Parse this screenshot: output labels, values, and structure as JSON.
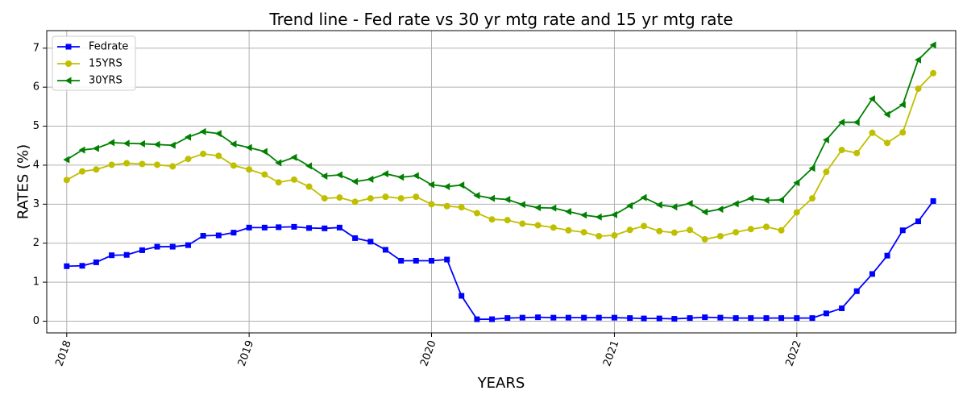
{
  "chart_data": {
    "type": "line",
    "title": "Trend line - Fed rate vs 30 yr mtg rate and 15 yr mtg rate",
    "xlabel": "YEARS",
    "ylabel": "RATES (%)",
    "xlim": [
      "2017-11-22",
      "2022-11-15"
    ],
    "ylim": [
      -0.3,
      7.45
    ],
    "x_ticks": [
      "2018-01-01",
      "2019-01-01",
      "2020-01-01",
      "2021-01-01",
      "2022-01-01"
    ],
    "x_tick_labels": [
      "2018",
      "2019",
      "2020",
      "2021",
      "2022"
    ],
    "y_ticks": [
      0,
      1,
      2,
      3,
      4,
      5,
      6,
      7
    ],
    "y_tick_labels": [
      "0",
      "1",
      "2",
      "3",
      "4",
      "5",
      "6",
      "7"
    ],
    "grid": true,
    "legend": "top-left",
    "x": [
      "2018-01-01",
      "2018-02-01",
      "2018-03-01",
      "2018-04-01",
      "2018-05-01",
      "2018-06-01",
      "2018-07-01",
      "2018-08-01",
      "2018-09-01",
      "2018-10-01",
      "2018-11-01",
      "2018-12-01",
      "2019-01-01",
      "2019-02-01",
      "2019-03-01",
      "2019-04-01",
      "2019-05-01",
      "2019-06-01",
      "2019-07-01",
      "2019-08-01",
      "2019-09-01",
      "2019-10-01",
      "2019-11-01",
      "2019-12-01",
      "2020-01-01",
      "2020-02-01",
      "2020-03-01",
      "2020-04-01",
      "2020-05-01",
      "2020-06-01",
      "2020-07-01",
      "2020-08-01",
      "2020-09-01",
      "2020-10-01",
      "2020-11-01",
      "2020-12-01",
      "2021-01-01",
      "2021-02-01",
      "2021-03-01",
      "2021-04-01",
      "2021-05-01",
      "2021-06-01",
      "2021-07-01",
      "2021-08-01",
      "2021-09-01",
      "2021-10-01",
      "2021-11-01",
      "2021-12-01",
      "2022-01-01",
      "2022-02-01",
      "2022-03-01",
      "2022-04-01",
      "2022-05-01",
      "2022-06-01",
      "2022-07-01",
      "2022-08-01",
      "2022-09-01",
      "2022-10-01"
    ],
    "series": [
      {
        "name": "Fedrate",
        "color": "#0000ff",
        "marker": "square",
        "values": [
          1.41,
          1.42,
          1.51,
          1.69,
          1.7,
          1.82,
          1.91,
          1.91,
          1.95,
          2.19,
          2.2,
          2.27,
          2.4,
          2.4,
          2.41,
          2.42,
          2.39,
          2.38,
          2.4,
          2.13,
          2.04,
          1.83,
          1.55,
          1.55,
          1.55,
          1.58,
          0.65,
          0.05,
          0.05,
          0.08,
          0.09,
          0.1,
          0.09,
          0.09,
          0.09,
          0.09,
          0.09,
          0.08,
          0.07,
          0.07,
          0.06,
          0.08,
          0.1,
          0.09,
          0.08,
          0.08,
          0.08,
          0.08,
          0.08,
          0.08,
          0.2,
          0.33,
          0.77,
          1.21,
          1.68,
          2.33,
          2.56,
          3.08
        ]
      },
      {
        "name": "15YRS",
        "color": "#bfbf00",
        "marker": "circle",
        "values": [
          3.62,
          3.84,
          3.89,
          4.01,
          4.05,
          4.03,
          4.01,
          3.97,
          4.16,
          4.29,
          4.24,
          3.99,
          3.89,
          3.76,
          3.56,
          3.63,
          3.45,
          3.15,
          3.17,
          3.06,
          3.15,
          3.19,
          3.15,
          3.19,
          3.0,
          2.95,
          2.92,
          2.77,
          2.61,
          2.59,
          2.5,
          2.46,
          2.4,
          2.33,
          2.28,
          2.18,
          2.2,
          2.34,
          2.44,
          2.31,
          2.27,
          2.34,
          2.1,
          2.18,
          2.28,
          2.36,
          2.42,
          2.33,
          2.79,
          3.15,
          3.83,
          4.39,
          4.31,
          4.83,
          4.57,
          4.84,
          5.96,
          6.36
        ]
      },
      {
        "name": "30YRS",
        "color": "#008000",
        "marker": "triangle-left",
        "values": [
          4.14,
          4.39,
          4.43,
          4.58,
          4.56,
          4.55,
          4.53,
          4.51,
          4.72,
          4.86,
          4.81,
          4.54,
          4.45,
          4.35,
          4.06,
          4.2,
          3.98,
          3.72,
          3.75,
          3.58,
          3.64,
          3.78,
          3.69,
          3.73,
          3.5,
          3.45,
          3.49,
          3.22,
          3.15,
          3.12,
          2.99,
          2.91,
          2.9,
          2.81,
          2.72,
          2.67,
          2.73,
          2.96,
          3.17,
          2.98,
          2.93,
          3.02,
          2.8,
          2.87,
          3.01,
          3.15,
          3.1,
          3.11,
          3.55,
          3.92,
          4.65,
          5.1,
          5.1,
          5.7,
          5.3,
          5.55,
          6.7,
          7.08
        ]
      }
    ]
  }
}
